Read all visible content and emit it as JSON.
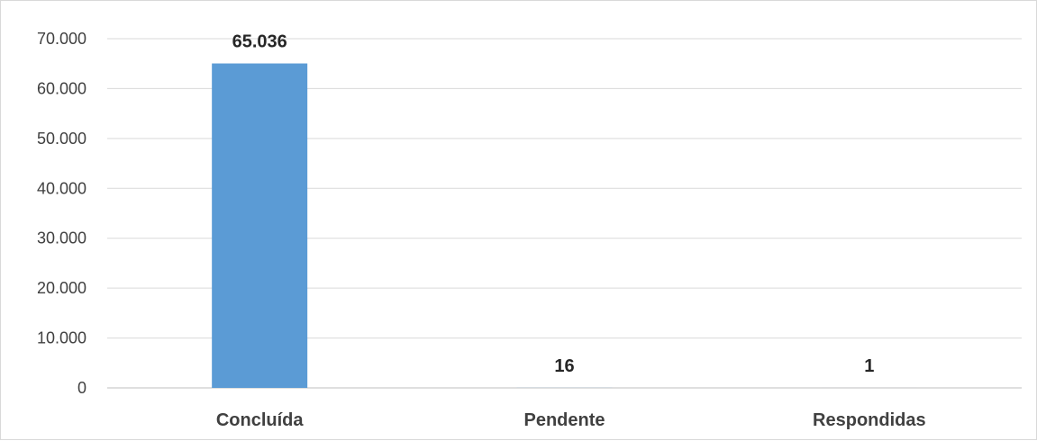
{
  "chart_data": {
    "type": "bar",
    "categories": [
      "Concluída",
      "Pendente",
      "Respondidas"
    ],
    "values": [
      65036,
      16,
      1
    ],
    "data_labels": [
      "65.036",
      "16",
      "1"
    ],
    "title": "",
    "xlabel": "",
    "ylabel": "",
    "ylim": [
      0,
      70000
    ],
    "yticks": [
      0,
      10000,
      20000,
      30000,
      40000,
      50000,
      60000,
      70000
    ],
    "ytick_labels": [
      "0",
      "10.000",
      "20.000",
      "30.000",
      "40.000",
      "50.000",
      "60.000",
      "70.000"
    ],
    "grid": true,
    "legend": "none",
    "bar_color": "#5b9bd5"
  }
}
